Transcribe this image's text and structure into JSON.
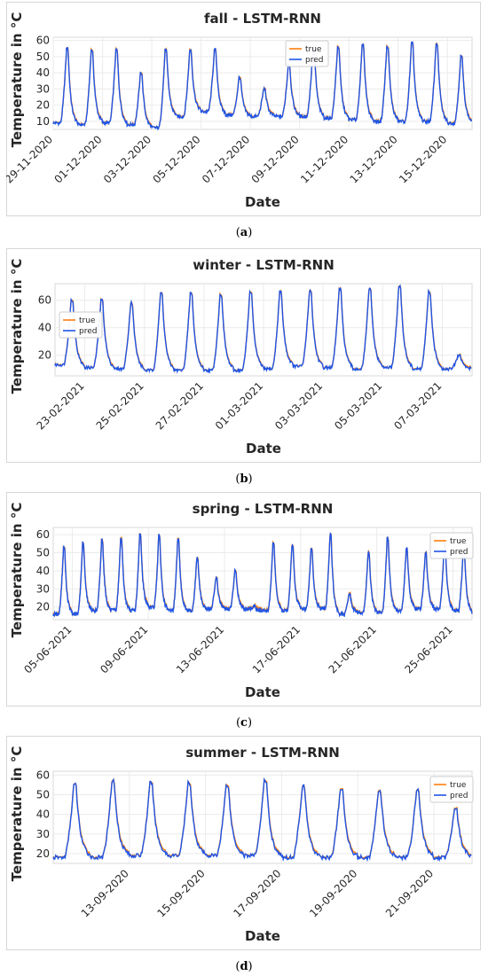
{
  "colors": {
    "true": "#ff7f0e",
    "pred": "#1f55e6"
  },
  "chart_data": [
    {
      "type": "line",
      "caption": "a",
      "title": "fall - LSTM-RNN",
      "xlabel": "Date",
      "ylabel": "Temperature in °C",
      "x_range": [
        "2020-11-29",
        "2020-12-16"
      ],
      "ylim": [
        5,
        62
      ],
      "yticks": [
        10,
        20,
        30,
        40,
        50,
        60
      ],
      "xticks": [
        "29-11-2020",
        "01-12-2020",
        "03-12-2020",
        "05-12-2020",
        "07-12-2020",
        "09-12-2020",
        "11-12-2020",
        "13-12-2020",
        "15-12-2020"
      ],
      "legend": "top-center",
      "grid": true,
      "series": [
        {
          "name": "true"
        },
        {
          "name": "pred"
        }
      ],
      "daily_min": [
        9,
        8,
        9,
        8,
        6,
        13,
        16,
        14,
        13,
        13,
        13,
        12,
        11,
        10,
        10,
        10,
        9
      ],
      "daily_max": [
        55,
        54,
        54,
        40,
        54,
        54,
        54,
        37,
        30,
        45,
        55,
        56,
        57,
        56,
        58,
        58,
        50
      ]
    },
    {
      "type": "line",
      "caption": "b",
      "title": "winter - LSTM-RNN",
      "xlabel": "Date",
      "ylabel": "Temperature in °C",
      "x_range": [
        "2021-02-22",
        "2021-03-08"
      ],
      "ylim": [
        5,
        72
      ],
      "yticks": [
        20,
        40,
        60
      ],
      "xticks": [
        "23-02-2021",
        "25-02-2021",
        "27-02-2021",
        "01-03-2021",
        "03-03-2021",
        "05-03-2021",
        "07-03-2021"
      ],
      "legend": "left",
      "grid": true,
      "series": [
        {
          "name": "true"
        },
        {
          "name": "pred"
        }
      ],
      "daily_min": [
        13,
        11,
        10,
        9,
        9,
        9,
        9,
        10,
        12,
        11,
        10,
        11,
        10,
        10
      ],
      "daily_max": [
        60,
        60,
        58,
        65,
        65,
        64,
        66,
        66,
        67,
        68,
        68,
        70,
        66,
        20
      ]
    },
    {
      "type": "line",
      "caption": "c",
      "title": "spring - LSTM-RNN",
      "xlabel": "Date",
      "ylabel": "Temperature in °C",
      "x_range": [
        "2021-06-04",
        "2021-06-26"
      ],
      "ylim": [
        13,
        64
      ],
      "yticks": [
        20,
        30,
        40,
        50,
        60
      ],
      "xticks": [
        "05-06-2021",
        "09-06-2021",
        "13-06-2021",
        "17-06-2021",
        "21-06-2021",
        "25-06-2021"
      ],
      "legend": "top-right",
      "grid": true,
      "series": [
        {
          "name": "true"
        },
        {
          "name": "pred"
        }
      ],
      "daily_min": [
        16,
        16,
        18,
        18,
        18,
        20,
        18,
        18,
        19,
        19,
        19,
        18,
        18,
        19,
        19,
        16,
        17,
        17,
        18,
        19,
        19,
        18,
        17
      ],
      "daily_max": [
        53,
        55,
        57,
        58,
        60,
        59,
        58,
        47,
        36,
        40,
        20,
        55,
        54,
        52,
        60,
        27,
        50,
        58,
        52,
        50,
        55,
        52,
        50
      ]
    },
    {
      "type": "line",
      "caption": "d",
      "title": "summer - LSTM-RNN",
      "xlabel": "Date",
      "ylabel": "Temperature in °C",
      "x_range": [
        "2020-09-11",
        "2020-09-22"
      ],
      "ylim": [
        15,
        62
      ],
      "yticks": [
        20,
        30,
        40,
        50,
        60
      ],
      "xticks": [
        "13-09-2020",
        "15-09-2020",
        "17-09-2020",
        "19-09-2020",
        "21-09-2020"
      ],
      "legend": "top-right",
      "grid": true,
      "series": [
        {
          "name": "true"
        },
        {
          "name": "pred"
        }
      ],
      "daily_min": [
        18,
        18,
        19,
        19,
        19,
        19,
        18,
        18,
        18,
        18,
        18
      ],
      "daily_max": [
        55,
        57,
        56,
        56,
        55,
        57,
        54,
        53,
        52,
        52,
        43
      ]
    }
  ]
}
